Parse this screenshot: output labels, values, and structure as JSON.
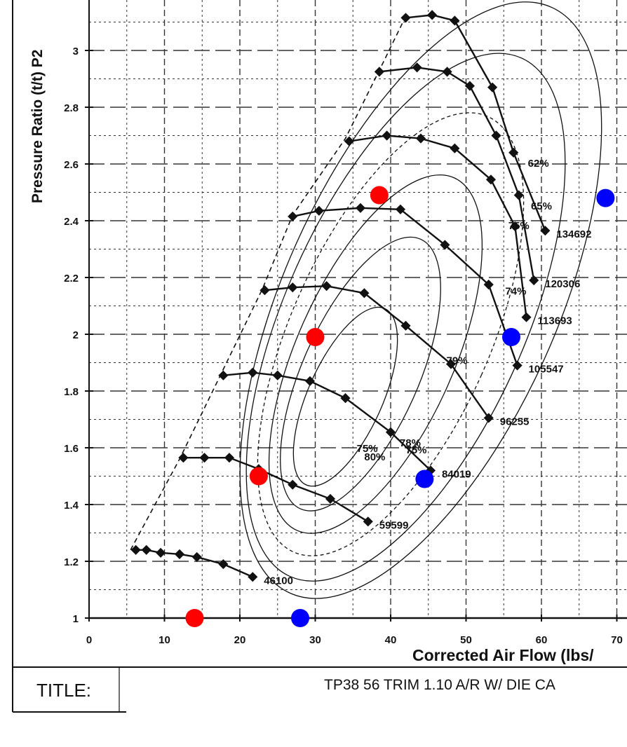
{
  "title_block": {
    "label": "TITLE:",
    "text": "TP38 56 TRIM 1.10 A/R  W/ DIE CA"
  },
  "chart_data": {
    "type": "scatter",
    "title": "",
    "xlabel": "Corrected Air Flow (lbs/",
    "ylabel": "Pressure Ratio (t/t) P2",
    "xlim": [
      0,
      72
    ],
    "ylim": [
      1,
      3.15
    ],
    "x_ticks": [
      "0",
      "10",
      "20",
      "30",
      "40",
      "50",
      "60",
      "70"
    ],
    "y_ticks": [
      "1",
      "1.2",
      "1.4",
      "1.6",
      "1.8",
      "2",
      "2.2",
      "2.4",
      "2.6",
      "2.8",
      "3"
    ],
    "grid": true,
    "speed_lines": [
      {
        "name": "46100",
        "points": [
          [
            6.2,
            1.24
          ],
          [
            7.6,
            1.24
          ],
          [
            9.5,
            1.23
          ],
          [
            12.0,
            1.225
          ],
          [
            14.3,
            1.215
          ],
          [
            17.8,
            1.19
          ],
          [
            21.7,
            1.145
          ]
        ]
      },
      {
        "name": "59599",
        "points": [
          [
            12.5,
            1.565
          ],
          [
            15.3,
            1.565
          ],
          [
            18.6,
            1.565
          ],
          [
            22.5,
            1.525
          ],
          [
            27.0,
            1.47
          ],
          [
            32.0,
            1.42
          ],
          [
            37.0,
            1.34
          ]
        ]
      },
      {
        "name": "84019",
        "points": [
          [
            17.8,
            1.855
          ],
          [
            21.7,
            1.865
          ],
          [
            25.0,
            1.855
          ],
          [
            29.3,
            1.835
          ],
          [
            34.0,
            1.775
          ],
          [
            40.0,
            1.655
          ],
          [
            45.3,
            1.52
          ]
        ]
      },
      {
        "name": "96255",
        "points": [
          [
            23.3,
            2.155
          ],
          [
            27.0,
            2.165
          ],
          [
            31.5,
            2.17
          ],
          [
            36.5,
            2.145
          ],
          [
            42.0,
            2.03
          ],
          [
            48.0,
            1.895
          ],
          [
            53.0,
            1.705
          ]
        ]
      },
      {
        "name": "105547",
        "points": [
          [
            27.0,
            2.415
          ],
          [
            30.5,
            2.435
          ],
          [
            36.0,
            2.445
          ],
          [
            41.3,
            2.44
          ],
          [
            47.2,
            2.315
          ],
          [
            53.0,
            2.175
          ],
          [
            56.8,
            1.89
          ]
        ]
      },
      {
        "name": "113693",
        "points": [
          [
            34.5,
            2.68
          ],
          [
            39.5,
            2.7
          ],
          [
            44.0,
            2.69
          ],
          [
            48.5,
            2.655
          ],
          [
            53.3,
            2.545
          ],
          [
            56.5,
            2.38
          ],
          [
            58.0,
            2.06
          ]
        ]
      },
      {
        "name": "120306",
        "points": [
          [
            38.5,
            2.925
          ],
          [
            43.5,
            2.94
          ],
          [
            47.5,
            2.925
          ],
          [
            50.5,
            2.875
          ],
          [
            54.0,
            2.7
          ],
          [
            57.0,
            2.49
          ],
          [
            59.0,
            2.19
          ]
        ]
      },
      {
        "name": "134692",
        "points": [
          [
            42.0,
            3.115
          ],
          [
            45.5,
            3.125
          ],
          [
            48.5,
            3.105
          ],
          [
            53.5,
            2.87
          ],
          [
            56.3,
            2.64
          ],
          [
            60.5,
            2.365
          ]
        ]
      }
    ],
    "efficiency_labels": [
      "80%",
      "75%",
      "78%",
      "75%",
      "79%",
      "74%",
      "75%",
      "65%",
      "62%"
    ],
    "marker_series": [
      {
        "color": "#ff0000",
        "points": [
          [
            14.0,
            1.0
          ],
          [
            22.5,
            1.5
          ],
          [
            30.0,
            1.99
          ],
          [
            38.5,
            2.49
          ]
        ]
      },
      {
        "color": "#0000ff",
        "points": [
          [
            28.0,
            1.0
          ],
          [
            44.5,
            1.49
          ],
          [
            56.0,
            1.99
          ],
          [
            68.5,
            2.48
          ]
        ]
      }
    ]
  }
}
